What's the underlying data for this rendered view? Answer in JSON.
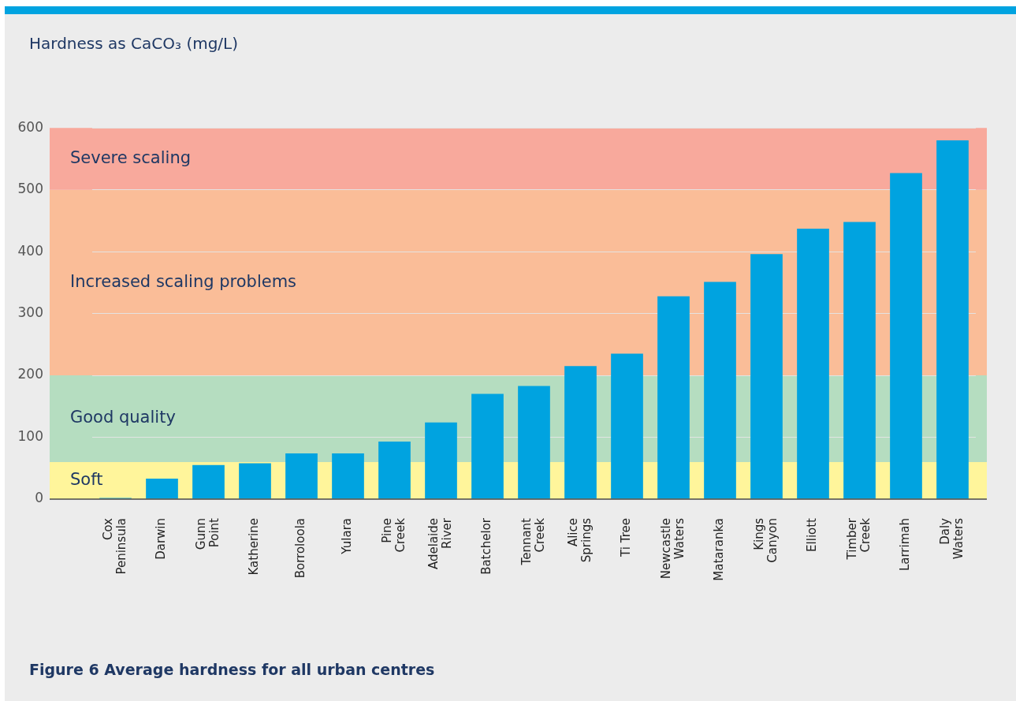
{
  "chart_data": {
    "type": "bar",
    "title": "Figure 6 Average hardness for all urban centres",
    "ylabel": "Hardness as CaCO₃ (mg/L)",
    "categories": [
      "Cox Peninsula",
      "Darwin",
      "Gunn Point",
      "Katherine",
      "Borroloola",
      "Yulara",
      "Pine Creek",
      "Adelaide River",
      "Batchelor",
      "Tennant Creek",
      "Alice Springs",
      "Ti Tree",
      "Newcastle Waters",
      "Mataranka",
      "Kings Canyon",
      "Elliott",
      "Timber Creek",
      "Larrimah",
      "Daly Waters"
    ],
    "values": [
      2,
      33,
      55,
      58,
      74,
      74,
      93,
      124,
      170,
      183,
      215,
      235,
      328,
      351,
      396,
      437,
      448,
      527,
      580
    ],
    "color": "#00a3e0",
    "ylim": [
      0,
      600
    ],
    "yticks": [
      0,
      100,
      200,
      300,
      400,
      500,
      600
    ],
    "grid": "y",
    "bands": [
      {
        "axis": "y",
        "from": 0,
        "to": 60,
        "label": "Soft",
        "color": "#fff59b"
      },
      {
        "axis": "y",
        "from": 60,
        "to": 200,
        "label": "Good quality",
        "color": "#b5ddc0"
      },
      {
        "axis": "y",
        "from": 200,
        "to": 500,
        "label": "Increased scaling problems",
        "color": "#fabd98"
      },
      {
        "axis": "y",
        "from": 500,
        "to": 600,
        "label": "Severe scaling",
        "color": "#f8a99c"
      }
    ]
  }
}
